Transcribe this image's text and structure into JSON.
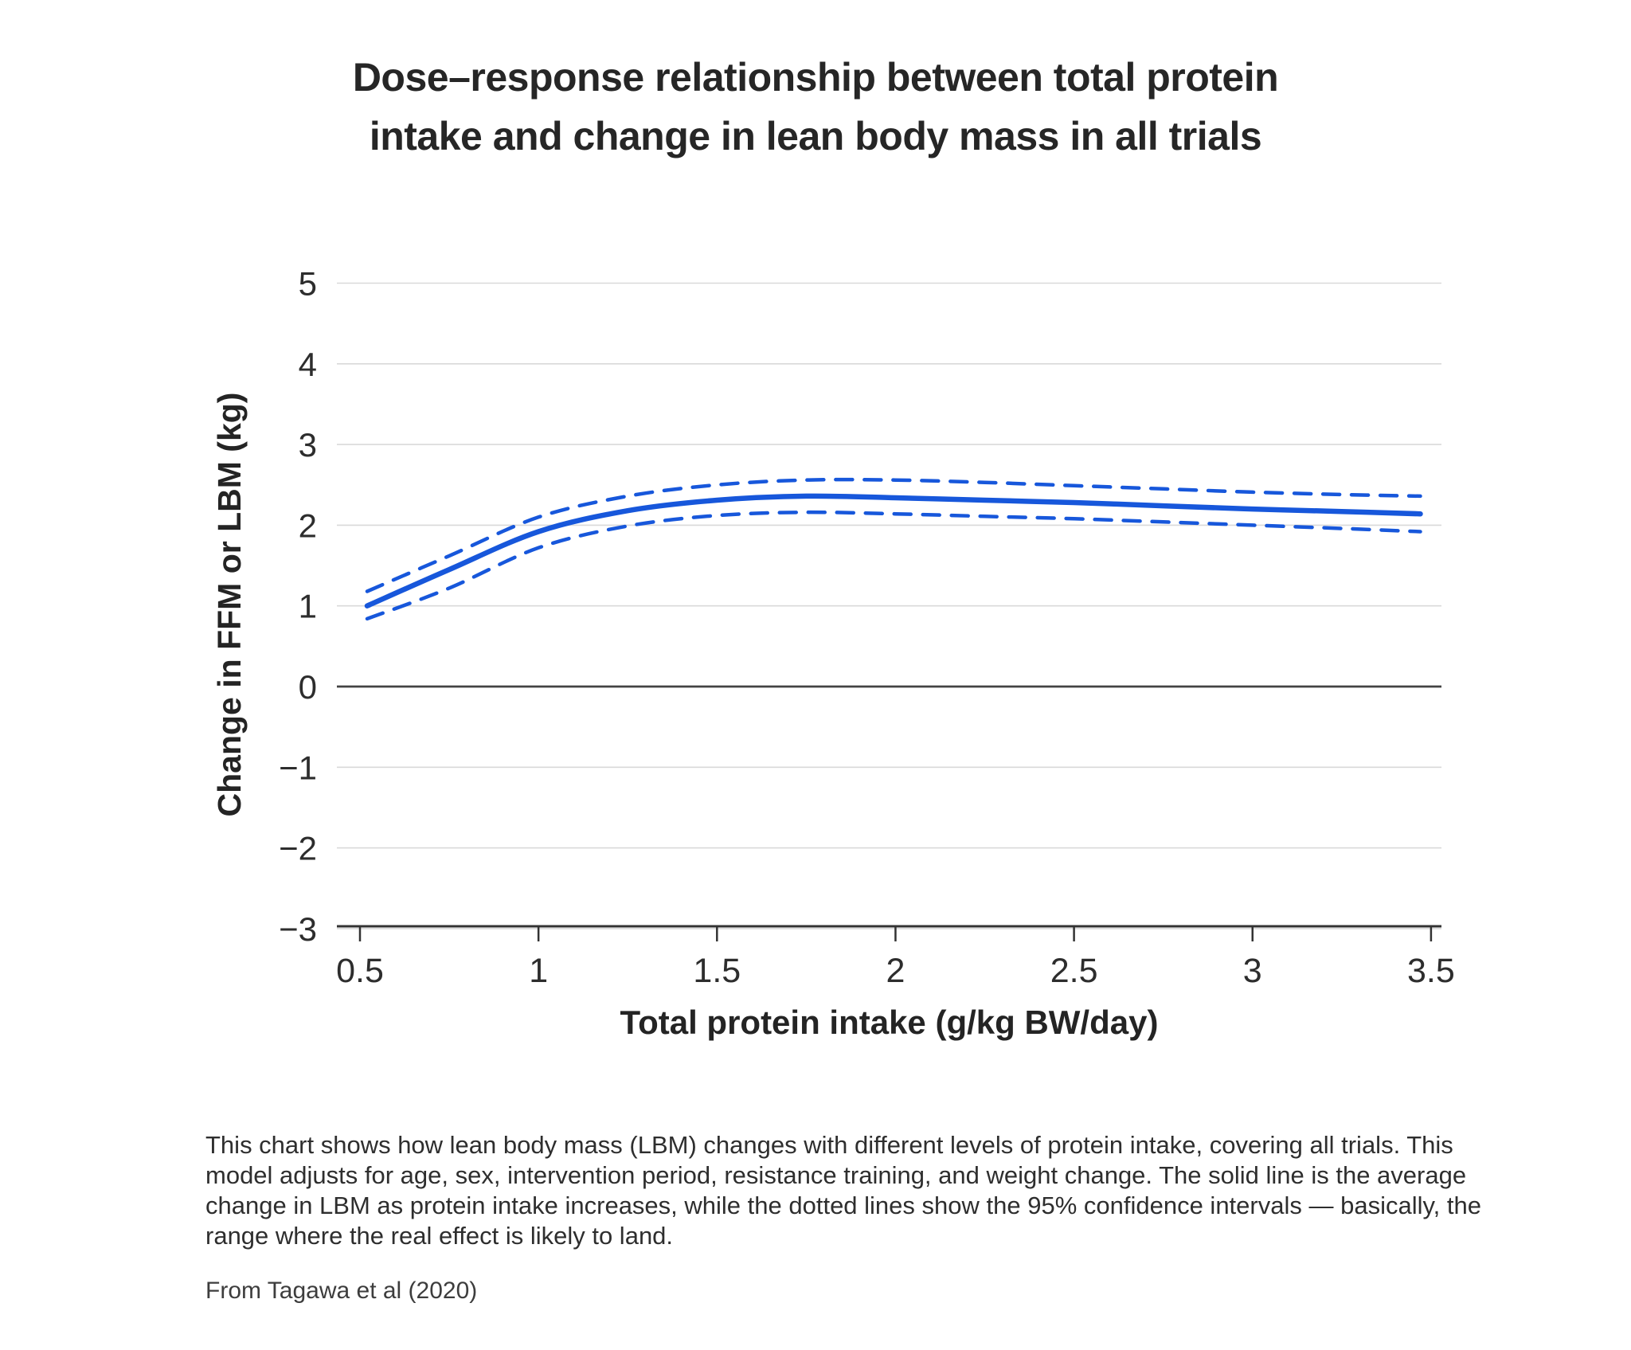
{
  "page": {
    "source": "From Tagawa et al (2020)"
  },
  "chart_data": {
    "type": "line",
    "title": "Dose–response relationship between total protein\nintake and change in lean body mass in all trials",
    "xlabel": "Total protein intake (g/kg BW/day)",
    "ylabel": "Change in FFM or LBM (kg)",
    "caption": "This chart shows how lean body mass (LBM) changes with different levels of protein intake, covering all trials. This model adjusts for age, sex, intervention period, resistance training, and weight change. The solid line is the average change in LBM as protein intake increases, while the dotted lines show the 95% confidence intervals — basically, the range where the real effect is likely to land.",
    "xlim": [
      0.435,
      3.53
    ],
    "ylim": [
      -3,
      5
    ],
    "grid": true,
    "legend": "none",
    "x_ticks": [
      {
        "value": 0.5,
        "label": "0.5"
      },
      {
        "value": 1,
        "label": "1"
      },
      {
        "value": 1.5,
        "label": "1.5"
      },
      {
        "value": 2,
        "label": "2"
      },
      {
        "value": 2.5,
        "label": "2.5"
      },
      {
        "value": 3,
        "label": "3"
      },
      {
        "value": 3.5,
        "label": "3.5"
      }
    ],
    "y_ticks": [
      {
        "value": 5,
        "label": "5"
      },
      {
        "value": 4,
        "label": "4"
      },
      {
        "value": 3,
        "label": "3"
      },
      {
        "value": 2,
        "label": "2"
      },
      {
        "value": 1,
        "label": "1"
      },
      {
        "value": 0,
        "label": "0"
      },
      {
        "value": -1,
        "label": "−1"
      },
      {
        "value": -2,
        "label": "−2"
      },
      {
        "value": -3,
        "label": "−3"
      }
    ],
    "x": [
      0.52,
      0.75,
      1.0,
      1.25,
      1.5,
      1.75,
      2.0,
      2.25,
      2.5,
      2.75,
      3.0,
      3.25,
      3.47
    ],
    "series": [
      {
        "name": "Average change in LBM (solid line)",
        "style": "solid",
        "values": [
          1.0,
          1.45,
          1.92,
          2.18,
          2.31,
          2.36,
          2.34,
          2.31,
          2.28,
          2.24,
          2.2,
          2.17,
          2.14
        ]
      },
      {
        "name": "95% confidence interval upper (dotted line)",
        "style": "dashed",
        "values": [
          1.18,
          1.62,
          2.1,
          2.36,
          2.5,
          2.56,
          2.56,
          2.53,
          2.49,
          2.45,
          2.41,
          2.38,
          2.36
        ]
      },
      {
        "name": "95% confidence interval lower (dotted line)",
        "style": "dashed",
        "values": [
          0.84,
          1.22,
          1.72,
          1.99,
          2.12,
          2.16,
          2.14,
          2.11,
          2.08,
          2.04,
          2.0,
          1.96,
          1.92
        ]
      }
    ],
    "colors": {
      "line_blue": "#1757db",
      "grid": "#d9d9d9",
      "zero_line": "#434343",
      "axis": "#333333",
      "tick_text": "#2d2d2d"
    }
  }
}
